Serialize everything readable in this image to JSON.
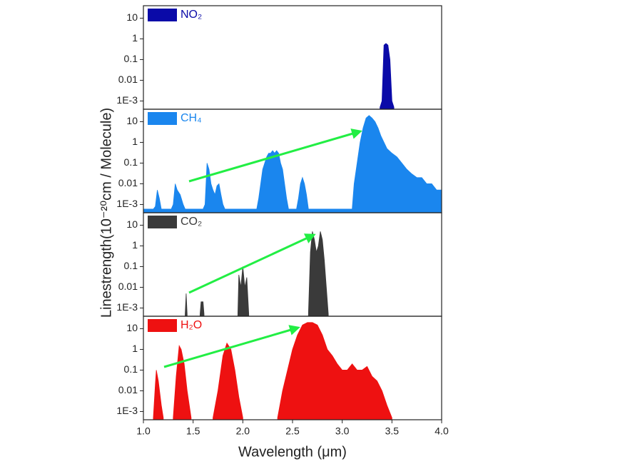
{
  "y_label": "Linestrength(10⁻²⁰cm / Molecule)",
  "chart_data": [
    {
      "type": "area",
      "log_scale": true,
      "xlim": [
        1,
        4
      ],
      "ylim": [
        0.0004,
        40
      ],
      "yticks": [
        10,
        1,
        0.1,
        0.01,
        {
          "value": 0.001,
          "label": "1E-3"
        }
      ],
      "x": [
        3.38,
        3.4,
        3.42,
        3.44,
        3.46,
        3.48,
        3.5,
        3.52
      ],
      "series": [
        {
          "name": "NO₂",
          "color": "#0a0aa8",
          "values": [
            0.0005,
            0.001,
            0.5,
            0.6,
            0.5,
            0.1,
            0.001,
            0.0005
          ]
        }
      ]
    },
    {
      "type": "area",
      "log_scale": true,
      "xlim": [
        1,
        4
      ],
      "ylim": [
        0.0004,
        40
      ],
      "yticks": [
        10,
        1,
        0.1,
        0.01,
        {
          "value": 0.001,
          "label": "1E-3"
        }
      ],
      "x": [
        1.0,
        1.1,
        1.12,
        1.14,
        1.16,
        1.18,
        1.28,
        1.3,
        1.32,
        1.34,
        1.37,
        1.4,
        1.42,
        1.6,
        1.62,
        1.64,
        1.66,
        1.68,
        1.7,
        1.72,
        1.74,
        1.76,
        1.78,
        1.8,
        1.82,
        2.14,
        2.16,
        2.18,
        2.2,
        2.22,
        2.24,
        2.26,
        2.28,
        2.3,
        2.32,
        2.34,
        2.36,
        2.38,
        2.4,
        2.42,
        2.44,
        2.46,
        2.54,
        2.56,
        2.58,
        2.6,
        2.62,
        2.64,
        2.66,
        3.1,
        3.12,
        3.15,
        3.18,
        3.21,
        3.24,
        3.27,
        3.3,
        3.33,
        3.36,
        3.39,
        3.42,
        3.45,
        3.5,
        3.55,
        3.6,
        3.65,
        3.7,
        3.75,
        3.8,
        3.85,
        3.9,
        3.95,
        4.0
      ],
      "series": [
        {
          "name": "CH₄",
          "color": "#1a86ee",
          "values": [
            0.0006,
            0.0006,
            0.0008,
            0.005,
            0.002,
            0.0006,
            0.0006,
            0.001,
            0.01,
            0.005,
            0.003,
            0.001,
            0.0006,
            0.0006,
            0.001,
            0.1,
            0.05,
            0.01,
            0.005,
            0.003,
            0.008,
            0.01,
            0.003,
            0.001,
            0.0006,
            0.0006,
            0.002,
            0.01,
            0.05,
            0.1,
            0.2,
            0.3,
            0.3,
            0.4,
            0.3,
            0.4,
            0.3,
            0.1,
            0.05,
            0.01,
            0.002,
            0.0006,
            0.0006,
            0.002,
            0.01,
            0.02,
            0.01,
            0.003,
            0.0006,
            0.0006,
            0.01,
            0.1,
            1,
            5,
            15,
            20,
            15,
            10,
            5,
            2,
            1,
            0.5,
            0.3,
            0.2,
            0.1,
            0.05,
            0.03,
            0.02,
            0.02,
            0.01,
            0.01,
            0.005,
            0.005
          ]
        }
      ]
    },
    {
      "type": "area",
      "log_scale": true,
      "xlim": [
        1,
        4
      ],
      "ylim": [
        0.0004,
        40
      ],
      "yticks": [
        10,
        1,
        0.1,
        0.01,
        {
          "value": 0.001,
          "label": "1E-3"
        }
      ],
      "x": [
        1.42,
        1.43,
        1.44,
        null,
        1.57,
        1.58,
        1.6,
        1.61,
        null,
        1.95,
        1.96,
        1.98,
        2.0,
        2.02,
        2.04,
        2.06,
        null,
        2.66,
        2.68,
        2.7,
        2.72,
        2.74,
        2.76,
        2.78,
        2.8,
        2.82,
        2.84,
        2.86
      ],
      "series": [
        {
          "name": "CO₂",
          "color": "#3a3a3a",
          "values": [
            0.0005,
            0.005,
            0.0005,
            null,
            0.0005,
            0.002,
            0.002,
            0.0005,
            null,
            0.0005,
            0.04,
            0.01,
            0.1,
            0.01,
            0.03,
            0.0005,
            null,
            0.0005,
            0.5,
            5,
            2,
            0.5,
            1,
            5,
            2,
            0.2,
            0.01,
            0.0005
          ]
        }
      ]
    },
    {
      "type": "area",
      "log_scale": true,
      "xlim": [
        1,
        4
      ],
      "ylim": [
        0.0004,
        40
      ],
      "yticks": [
        10,
        1,
        0.1,
        0.01,
        {
          "value": 0.001,
          "label": "1E-3"
        }
      ],
      "xticks": [
        {
          "value": 1,
          "label": "1.0"
        },
        1.5,
        {
          "value": 2,
          "label": "2.0"
        },
        2.5,
        {
          "value": 3,
          "label": "3.0"
        },
        3.5,
        {
          "value": 4,
          "label": "4.0"
        }
      ],
      "x_label": "Wavelength (μm)",
      "x": [
        1.1,
        1.12,
        1.13,
        1.15,
        1.18,
        1.2,
        null,
        1.3,
        1.33,
        1.36,
        1.38,
        1.41,
        1.44,
        1.48,
        null,
        1.7,
        1.75,
        1.8,
        1.84,
        1.88,
        1.92,
        1.96,
        2.0,
        null,
        2.35,
        2.4,
        2.45,
        2.5,
        2.55,
        2.6,
        2.65,
        2.7,
        2.75,
        2.8,
        2.85,
        2.9,
        2.95,
        3.0,
        3.05,
        3.1,
        3.15,
        3.2,
        3.25,
        3.3,
        3.35,
        3.4,
        3.45,
        3.5
      ],
      "series": [
        {
          "name": "H₂O",
          "color": "#ee1111",
          "values": [
            0.0005,
            0.02,
            0.1,
            0.03,
            0.002,
            0.0005,
            null,
            0.0005,
            0.05,
            1.5,
            1,
            0.2,
            0.01,
            0.0005,
            null,
            0.0005,
            0.01,
            0.5,
            2,
            1,
            0.1,
            0.005,
            0.0005,
            null,
            0.0005,
            0.01,
            0.1,
            1,
            5,
            15,
            20,
            20,
            15,
            5,
            1,
            0.5,
            0.2,
            0.1,
            0.1,
            0.2,
            0.1,
            0.1,
            0.15,
            0.05,
            0.03,
            0.01,
            0.002,
            0.0005
          ]
        }
      ]
    }
  ]
}
